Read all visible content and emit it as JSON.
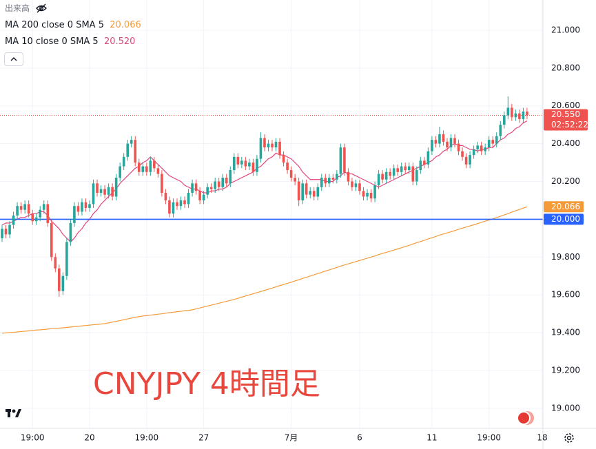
{
  "header": {
    "volume_label": "出来高"
  },
  "chart_data": {
    "type": "candlestick",
    "title": "CNYJPY 4時間足",
    "up_color": "#26a69a",
    "down_color": "#ef5350",
    "open": [
      19.9,
      19.95,
      19.92,
      19.97,
      20.02,
      20.07,
      20.05,
      20.08,
      20.03,
      19.99,
      20.01,
      20.05,
      20.08,
      19.98,
      19.8,
      19.74,
      19.62,
      19.7,
      19.88,
      19.98,
      20.07,
      20.04,
      20.09,
      20.06,
      20.08,
      20.19,
      20.14,
      20.16,
      20.13,
      20.17,
      20.12,
      20.22,
      20.28,
      20.33,
      20.4,
      20.42,
      20.3,
      20.25,
      20.28,
      20.25,
      20.31,
      20.27,
      20.24,
      20.14,
      20.1,
      20.03,
      20.09,
      20.07,
      20.1,
      20.08,
      20.14,
      20.19,
      20.15,
      20.1,
      20.13,
      20.17,
      20.16,
      20.2,
      20.17,
      20.22,
      20.19,
      20.26,
      20.33,
      20.29,
      20.31,
      20.28,
      20.3,
      20.25,
      20.32,
      20.43,
      20.38,
      20.4,
      20.38,
      20.41,
      20.34,
      20.3,
      20.26,
      20.22,
      20.2,
      20.1,
      20.19,
      20.13,
      20.15,
      20.12,
      20.17,
      20.22,
      20.19,
      20.22,
      20.21,
      20.24,
      20.38,
      20.25,
      20.2,
      20.17,
      20.19,
      20.15,
      20.12,
      20.14,
      20.11,
      20.18,
      20.24,
      20.21,
      20.25,
      20.23,
      20.27,
      20.25,
      20.28,
      20.26,
      20.28,
      20.2,
      20.26,
      20.31,
      20.29,
      20.36,
      20.42,
      20.4,
      20.45,
      20.41,
      20.38,
      20.43,
      20.4,
      20.36,
      20.33,
      20.29,
      20.34,
      20.37,
      20.39,
      20.36,
      20.38,
      20.42,
      20.4,
      20.44,
      20.5,
      20.55,
      20.59,
      20.54,
      20.56,
      20.53,
      20.57
    ],
    "high": [
      19.97,
      19.97,
      19.99,
      20.04,
      20.09,
      20.09,
      20.1,
      20.1,
      20.05,
      20.03,
      20.07,
      20.1,
      20.1,
      20.0,
      19.82,
      19.76,
      19.72,
      19.9,
      20.0,
      20.09,
      20.09,
      20.11,
      20.11,
      20.1,
      20.21,
      20.21,
      20.18,
      20.18,
      20.19,
      20.19,
      20.24,
      20.3,
      20.35,
      20.42,
      20.44,
      20.44,
      20.32,
      20.3,
      20.3,
      20.33,
      20.33,
      20.29,
      20.26,
      20.16,
      20.12,
      20.11,
      20.11,
      20.12,
      20.12,
      20.16,
      20.21,
      20.21,
      20.17,
      20.15,
      20.19,
      20.19,
      20.22,
      20.22,
      20.24,
      20.24,
      20.28,
      20.35,
      20.35,
      20.33,
      20.33,
      20.32,
      20.32,
      20.34,
      20.46,
      20.45,
      20.42,
      20.42,
      20.43,
      20.43,
      20.36,
      20.32,
      20.28,
      20.24,
      20.22,
      20.21,
      20.21,
      20.17,
      20.17,
      20.19,
      20.24,
      20.24,
      20.24,
      20.24,
      20.26,
      20.4,
      20.4,
      20.27,
      20.22,
      20.21,
      20.21,
      20.17,
      20.16,
      20.16,
      20.2,
      20.26,
      20.26,
      20.27,
      20.27,
      20.29,
      20.29,
      20.3,
      20.3,
      20.3,
      20.3,
      20.28,
      20.33,
      20.33,
      20.38,
      20.44,
      20.44,
      20.49,
      20.47,
      20.43,
      20.45,
      20.45,
      20.42,
      20.38,
      20.35,
      20.36,
      20.39,
      20.41,
      20.41,
      20.4,
      20.44,
      20.44,
      20.46,
      20.52,
      20.57,
      20.65,
      20.61,
      20.58,
      20.58,
      20.59,
      20.59
    ],
    "low": [
      19.88,
      19.9,
      19.9,
      19.95,
      20.0,
      20.03,
      20.03,
      20.01,
      19.97,
      19.97,
      19.99,
      20.03,
      19.96,
      19.78,
      19.72,
      19.59,
      19.6,
      19.68,
      19.86,
      19.96,
      20.02,
      20.02,
      20.04,
      20.04,
      20.06,
      20.12,
      20.12,
      20.11,
      20.11,
      20.1,
      20.1,
      20.2,
      20.26,
      20.31,
      20.38,
      20.28,
      20.23,
      20.23,
      20.23,
      20.23,
      20.25,
      20.22,
      20.12,
      20.08,
      20.01,
      20.01,
      20.05,
      20.05,
      20.06,
      20.06,
      20.12,
      20.13,
      20.08,
      20.08,
      20.11,
      20.14,
      20.14,
      20.15,
      20.15,
      20.17,
      20.17,
      20.24,
      20.27,
      20.27,
      20.26,
      20.26,
      20.23,
      20.23,
      20.3,
      20.36,
      20.36,
      20.36,
      20.36,
      20.32,
      20.28,
      20.24,
      20.2,
      20.18,
      20.07,
      20.08,
      20.11,
      20.11,
      20.1,
      20.1,
      20.15,
      20.17,
      20.17,
      20.19,
      20.19,
      20.22,
      20.23,
      20.18,
      20.15,
      20.15,
      20.13,
      20.1,
      20.1,
      20.09,
      20.09,
      20.16,
      20.19,
      20.19,
      20.21,
      20.21,
      20.23,
      20.23,
      20.24,
      20.24,
      20.18,
      20.18,
      20.24,
      20.27,
      20.27,
      20.34,
      20.38,
      20.38,
      20.39,
      20.36,
      20.36,
      20.38,
      20.34,
      20.31,
      20.27,
      20.27,
      20.32,
      20.35,
      20.34,
      20.34,
      20.36,
      20.38,
      20.38,
      20.42,
      20.48,
      20.53,
      20.52,
      20.52,
      20.51,
      20.51,
      20.53
    ],
    "close": [
      19.95,
      19.92,
      19.97,
      20.02,
      20.07,
      20.05,
      20.08,
      20.03,
      19.99,
      20.01,
      20.05,
      20.08,
      19.98,
      19.8,
      19.74,
      19.62,
      19.7,
      19.88,
      19.98,
      20.07,
      20.04,
      20.09,
      20.06,
      20.08,
      20.19,
      20.14,
      20.16,
      20.13,
      20.17,
      20.12,
      20.22,
      20.28,
      20.33,
      20.4,
      20.42,
      20.3,
      20.25,
      20.28,
      20.25,
      20.31,
      20.27,
      20.24,
      20.14,
      20.1,
      20.03,
      20.09,
      20.07,
      20.1,
      20.08,
      20.14,
      20.19,
      20.15,
      20.1,
      20.13,
      20.17,
      20.16,
      20.2,
      20.17,
      20.22,
      20.19,
      20.26,
      20.33,
      20.29,
      20.31,
      20.28,
      20.3,
      20.25,
      20.32,
      20.43,
      20.38,
      20.4,
      20.38,
      20.41,
      20.34,
      20.3,
      20.26,
      20.22,
      20.2,
      20.1,
      20.19,
      20.13,
      20.15,
      20.12,
      20.17,
      20.22,
      20.19,
      20.22,
      20.21,
      20.24,
      20.38,
      20.25,
      20.2,
      20.17,
      20.19,
      20.15,
      20.12,
      20.14,
      20.11,
      20.18,
      20.24,
      20.21,
      20.25,
      20.23,
      20.27,
      20.25,
      20.28,
      20.26,
      20.28,
      20.2,
      20.26,
      20.31,
      20.29,
      20.36,
      20.42,
      20.4,
      20.45,
      20.41,
      20.38,
      20.43,
      20.4,
      20.36,
      20.33,
      20.29,
      20.34,
      20.37,
      20.39,
      20.36,
      20.38,
      20.42,
      20.4,
      20.44,
      20.5,
      20.55,
      20.59,
      20.54,
      20.56,
      20.53,
      20.57,
      20.55
    ],
    "last_price_label": "20.550",
    "countdown": "02:52:22",
    "series": [
      {
        "name": "MA 200 close 0 SMA 5",
        "color": "#f59a38",
        "last_label": "20.066",
        "values": [
          19.397,
          19.399,
          19.401,
          19.402,
          19.404,
          19.406,
          19.408,
          19.41,
          19.412,
          19.414,
          19.415,
          19.417,
          19.419,
          19.421,
          19.423,
          19.424,
          19.426,
          19.428,
          19.43,
          19.432,
          19.434,
          19.436,
          19.438,
          19.44,
          19.442,
          19.444,
          19.446,
          19.448,
          19.452,
          19.456,
          19.46,
          19.464,
          19.469,
          19.473,
          19.477,
          19.481,
          19.485,
          19.488,
          19.49,
          19.493,
          19.495,
          19.498,
          19.5,
          19.503,
          19.506,
          19.508,
          19.511,
          19.513,
          19.516,
          19.518,
          19.521,
          19.526,
          19.531,
          19.536,
          19.541,
          19.546,
          19.551,
          19.556,
          19.561,
          19.566,
          19.571,
          19.576,
          19.582,
          19.588,
          19.594,
          19.6,
          19.606,
          19.612,
          19.618,
          19.624,
          19.63,
          19.636,
          19.643,
          19.649,
          19.655,
          19.661,
          19.667,
          19.674,
          19.68,
          19.687,
          19.693,
          19.7,
          19.706,
          19.713,
          19.719,
          19.726,
          19.732,
          19.739,
          19.745,
          19.752,
          19.758,
          19.764,
          19.77,
          19.776,
          19.782,
          19.788,
          19.794,
          19.8,
          19.806,
          19.813,
          19.819,
          19.825,
          19.831,
          19.837,
          19.843,
          19.849,
          19.856,
          19.862,
          19.869,
          19.876,
          19.882,
          19.889,
          19.896,
          19.902,
          19.909,
          19.916,
          19.922,
          19.928,
          19.934,
          19.94,
          19.947,
          19.953,
          19.959,
          19.965,
          19.971,
          19.977,
          19.984,
          19.99,
          19.996,
          20.002,
          20.009,
          20.016,
          20.023,
          20.03,
          20.038,
          20.045,
          20.052,
          20.059,
          20.066
        ]
      },
      {
        "name": "MA 10 close 0 SMA 5",
        "color": "#e2457d",
        "last_label": "20.520",
        "values": [
          19.97,
          19.98,
          19.98,
          19.99,
          20.0,
          20.01,
          20.01,
          20.02,
          20.03,
          20.03,
          20.04,
          20.04,
          20.02,
          19.99,
          19.97,
          19.95,
          19.92,
          19.9,
          19.88,
          19.9,
          19.93,
          19.95,
          19.98,
          20.0,
          20.03,
          20.05,
          20.08,
          20.1,
          20.12,
          20.14,
          20.16,
          20.19,
          20.21,
          20.23,
          20.25,
          20.27,
          20.28,
          20.3,
          20.31,
          20.33,
          20.31,
          20.29,
          20.27,
          20.25,
          20.23,
          20.22,
          20.21,
          20.2,
          20.18,
          20.17,
          20.16,
          20.16,
          20.15,
          20.14,
          20.14,
          20.15,
          20.15,
          20.16,
          20.16,
          20.17,
          20.19,
          20.2,
          20.21,
          20.22,
          20.23,
          20.24,
          20.25,
          20.27,
          20.28,
          20.3,
          20.32,
          20.33,
          20.35,
          20.34,
          20.34,
          20.33,
          20.32,
          20.3,
          20.28,
          20.25,
          20.23,
          20.21,
          20.21,
          20.21,
          20.21,
          20.2,
          20.2,
          20.2,
          20.22,
          20.23,
          20.25,
          20.24,
          20.24,
          20.23,
          20.22,
          20.21,
          20.2,
          20.19,
          20.18,
          20.17,
          20.18,
          20.19,
          20.2,
          20.21,
          20.22,
          20.23,
          20.24,
          20.25,
          20.26,
          20.27,
          20.28,
          20.29,
          20.3,
          20.31,
          20.33,
          20.34,
          20.36,
          20.37,
          20.39,
          20.4,
          20.39,
          20.39,
          20.38,
          20.37,
          20.37,
          20.36,
          20.37,
          20.37,
          20.38,
          20.38,
          20.4,
          20.42,
          20.43,
          20.45,
          20.46,
          20.48,
          20.49,
          20.51,
          20.52
        ]
      }
    ],
    "hline": {
      "value": 20,
      "label": "20.000",
      "color": "#2962ff"
    },
    "ylim": [
      18.894,
      21.16
    ],
    "yticks": [
      {
        "value": 19,
        "label": "19.000"
      },
      {
        "value": 19.2,
        "label": "19.200"
      },
      {
        "value": 19.4,
        "label": "19.400"
      },
      {
        "value": 19.6,
        "label": "19.600"
      },
      {
        "value": 19.8,
        "label": "19.800"
      },
      {
        "value": 20,
        "label": "20.000"
      },
      {
        "value": 20.2,
        "label": "20.200"
      },
      {
        "value": 20.4,
        "label": "20.400"
      },
      {
        "value": 20.6,
        "label": "20.600"
      },
      {
        "value": 20.8,
        "label": "20.800"
      },
      {
        "value": 21,
        "label": "21.000"
      }
    ],
    "xlim": [
      -0.545,
      142.18
    ],
    "xticks": [
      {
        "value": 8,
        "label": "19:00"
      },
      {
        "value": 23,
        "label": "20"
      },
      {
        "value": 38,
        "label": "19:00"
      },
      {
        "value": 53,
        "label": "27"
      },
      {
        "value": 76,
        "label": "7月"
      },
      {
        "value": 94,
        "label": "6"
      },
      {
        "value": 113,
        "label": "11"
      },
      {
        "value": 128,
        "label": "19:00"
      },
      {
        "value": 142,
        "label": "18"
      }
    ],
    "grid": true
  }
}
